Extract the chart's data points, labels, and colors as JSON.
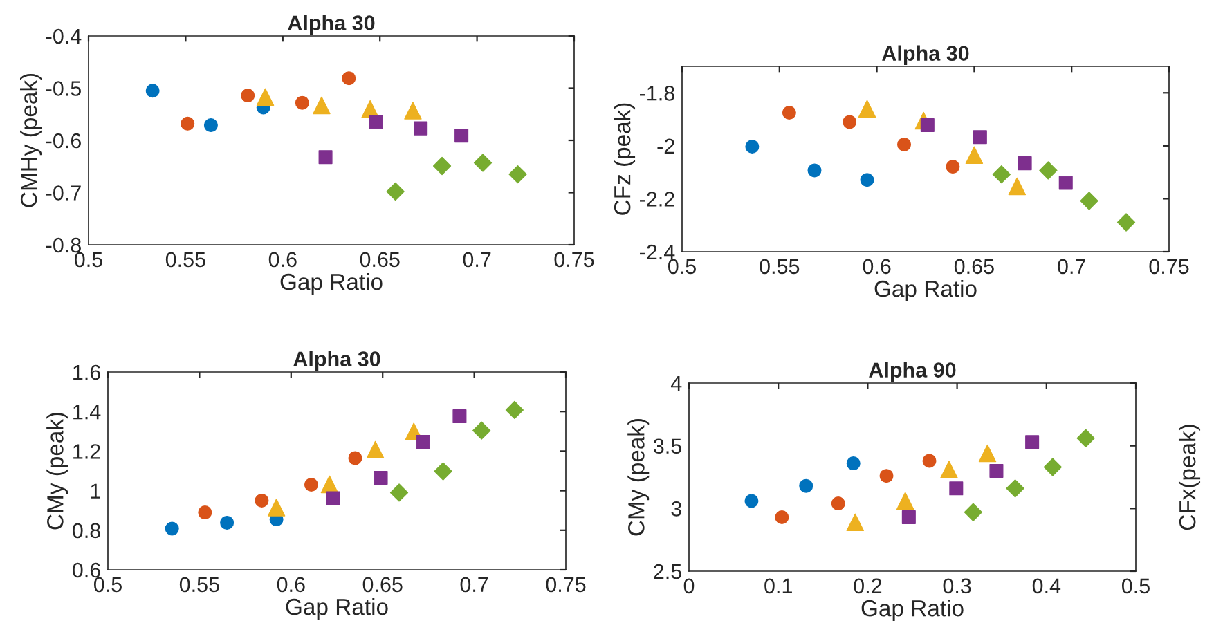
{
  "chart_data": [
    {
      "type": "scatter",
      "title": "Alpha 30",
      "xlabel": "Gap Ratio",
      "ylabel": "CMHy (peak)",
      "xlim": [
        0.5,
        0.75
      ],
      "ylim": [
        -0.8,
        -0.4
      ],
      "xticks": [
        0.5,
        0.55,
        0.6,
        0.65,
        0.7,
        0.75
      ],
      "yticks": [
        -0.8,
        -0.7,
        -0.6,
        -0.5,
        -0.4
      ],
      "grid": false,
      "series": [
        {
          "color": "#0072bd",
          "marker": "circle",
          "x": [
            0.533,
            0.563,
            0.59
          ],
          "values": [
            -0.505,
            -0.571,
            -0.537
          ]
        },
        {
          "color": "#d95319",
          "marker": "circle",
          "x": [
            0.551,
            0.582,
            0.61,
            0.634
          ],
          "values": [
            -0.568,
            -0.514,
            -0.528,
            -0.481
          ]
        },
        {
          "color": "#edb120",
          "marker": "triangle",
          "x": [
            0.591,
            0.62,
            0.645,
            0.667
          ],
          "values": [
            -0.517,
            -0.533,
            -0.54,
            -0.543
          ]
        },
        {
          "color": "#7e2f8e",
          "marker": "square",
          "x": [
            0.622,
            0.648,
            0.671,
            0.692
          ],
          "values": [
            -0.632,
            -0.565,
            -0.577,
            -0.591
          ]
        },
        {
          "color": "#77ac30",
          "marker": "diamond",
          "x": [
            0.658,
            0.682,
            0.703,
            0.721
          ],
          "values": [
            -0.698,
            -0.649,
            -0.643,
            -0.665
          ]
        }
      ]
    },
    {
      "type": "scatter",
      "title": "Alpha 30",
      "xlabel": "Gap Ratio",
      "ylabel": "CFz (peak)",
      "xlim": [
        0.5,
        0.75
      ],
      "ylim": [
        -2.4,
        -1.7
      ],
      "xticks": [
        0.5,
        0.55,
        0.6,
        0.65,
        0.7,
        0.75
      ],
      "yticks": [
        -2.4,
        -2.2,
        -2,
        -1.8
      ],
      "grid": false,
      "series": [
        {
          "color": "#0072bd",
          "marker": "circle",
          "x": [
            0.536,
            0.568,
            0.595
          ],
          "values": [
            -2.003,
            -2.093,
            -2.129
          ]
        },
        {
          "color": "#d95319",
          "marker": "circle",
          "x": [
            0.555,
            0.586,
            0.614,
            0.639
          ],
          "values": [
            -1.875,
            -1.91,
            -1.995,
            -2.079
          ]
        },
        {
          "color": "#edb120",
          "marker": "triangle",
          "x": [
            0.595,
            0.624,
            0.65,
            0.672
          ],
          "values": [
            -1.86,
            -1.905,
            -2.035,
            -2.153
          ]
        },
        {
          "color": "#7e2f8e",
          "marker": "square",
          "x": [
            0.626,
            0.653,
            0.676,
            0.697
          ],
          "values": [
            -1.922,
            -1.967,
            -2.066,
            -2.14
          ]
        },
        {
          "color": "#77ac30",
          "marker": "diamond",
          "x": [
            0.664,
            0.688,
            0.709,
            0.728
          ],
          "values": [
            -2.108,
            -2.093,
            -2.208,
            -2.289
          ]
        }
      ]
    },
    {
      "type": "scatter",
      "title": "Alpha 30",
      "xlabel": "Gap Ratio",
      "ylabel": "CMy (peak)",
      "xlim": [
        0.5,
        0.75
      ],
      "ylim": [
        0.6,
        1.6
      ],
      "xticks": [
        0.5,
        0.55,
        0.6,
        0.65,
        0.7,
        0.75
      ],
      "yticks": [
        0.6,
        0.8,
        1,
        1.2,
        1.4,
        1.6
      ],
      "grid": false,
      "series": [
        {
          "color": "#0072bd",
          "marker": "circle",
          "x": [
            0.535,
            0.565,
            0.592
          ],
          "values": [
            0.808,
            0.838,
            0.855
          ]
        },
        {
          "color": "#d95319",
          "marker": "circle",
          "x": [
            0.553,
            0.584,
            0.611,
            0.635
          ],
          "values": [
            0.89,
            0.95,
            1.03,
            1.165
          ]
        },
        {
          "color": "#edb120",
          "marker": "triangle",
          "x": [
            0.592,
            0.621,
            0.646,
            0.667
          ],
          "values": [
            0.915,
            1.032,
            1.207,
            1.299
          ]
        },
        {
          "color": "#7e2f8e",
          "marker": "square",
          "x": [
            0.623,
            0.649,
            0.672,
            0.692
          ],
          "values": [
            0.962,
            1.065,
            1.247,
            1.376
          ]
        },
        {
          "color": "#77ac30",
          "marker": "diamond",
          "x": [
            0.659,
            0.683,
            0.704,
            0.722
          ],
          "values": [
            0.99,
            1.098,
            1.304,
            1.408
          ]
        }
      ]
    },
    {
      "type": "scatter",
      "title": "Alpha 90",
      "xlabel": "Gap Ratio",
      "ylabel": "CMy (peak)",
      "xlim": [
        0,
        0.5
      ],
      "ylim": [
        2.5,
        4
      ],
      "xticks": [
        0,
        0.1,
        0.2,
        0.3,
        0.4,
        0.5
      ],
      "yticks": [
        2.5,
        3,
        3.5,
        4
      ],
      "grid": false,
      "annotations": [
        "CFx(peak)"
      ],
      "series": [
        {
          "color": "#0072bd",
          "marker": "circle",
          "x": [
            0.07,
            0.131,
            0.184
          ],
          "values": [
            3.06,
            3.18,
            3.36
          ]
        },
        {
          "color": "#d95319",
          "marker": "circle",
          "x": [
            0.104,
            0.167,
            0.221,
            0.269
          ],
          "values": [
            2.93,
            3.04,
            3.26,
            3.38
          ]
        },
        {
          "color": "#edb120",
          "marker": "triangle",
          "x": [
            0.186,
            0.242,
            0.291,
            0.334
          ],
          "values": [
            2.89,
            3.06,
            3.31,
            3.44
          ]
        },
        {
          "color": "#7e2f8e",
          "marker": "square",
          "x": [
            0.246,
            0.299,
            0.344,
            0.384
          ],
          "values": [
            2.93,
            3.16,
            3.3,
            3.53
          ]
        },
        {
          "color": "#77ac30",
          "marker": "diamond",
          "x": [
            0.318,
            0.365,
            0.407,
            0.444
          ],
          "values": [
            2.97,
            3.16,
            3.33,
            3.56
          ]
        }
      ]
    }
  ]
}
